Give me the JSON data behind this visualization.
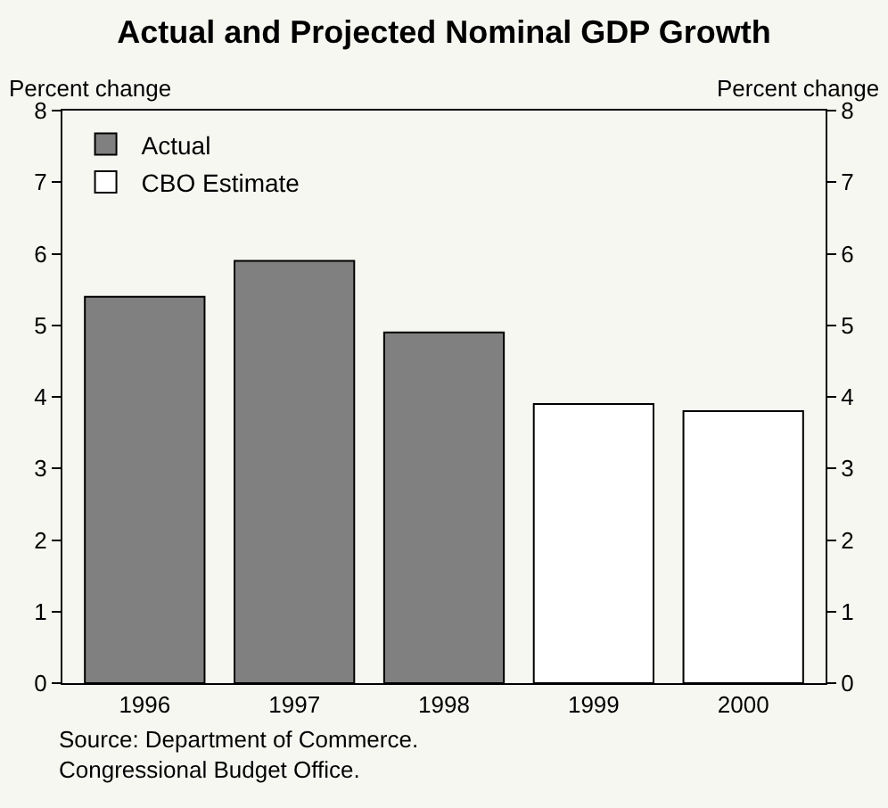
{
  "chart_data": {
    "type": "bar",
    "title": "Actual and Projected Nominal GDP Growth",
    "ylabel": "Percent change",
    "y2label": "Percent change",
    "categories": [
      "1996",
      "1997",
      "1998",
      "1999",
      "2000"
    ],
    "series": [
      {
        "name": "Actual",
        "color": "#808080",
        "values": [
          5.4,
          5.9,
          4.9,
          null,
          null
        ]
      },
      {
        "name": "CBO Estimate",
        "color": "#ffffff",
        "values": [
          null,
          null,
          null,
          3.9,
          3.8
        ]
      }
    ],
    "ylim": [
      0,
      8
    ],
    "yticks": [
      0,
      1,
      2,
      3,
      4,
      5,
      6,
      7,
      8
    ],
    "y2lim": [
      0,
      8
    ],
    "y2ticks": [
      0,
      1,
      2,
      3,
      4,
      5,
      6,
      7,
      8
    ],
    "legend": "top left",
    "grid": false,
    "annotations": [
      "Source: Department of Commerce.\nCongressional Budget Office."
    ]
  }
}
